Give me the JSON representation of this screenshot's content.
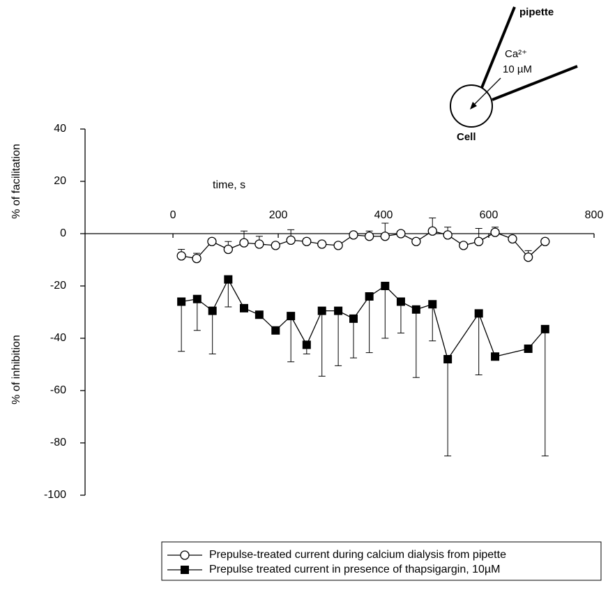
{
  "chart_data": {
    "type": "line",
    "axis_label_upper": "% of facilitation",
    "axis_label_lower": "% of inhibition",
    "xlabel": "time, s",
    "annotations": {
      "pipette": "pipette",
      "ion": "Ca²⁺",
      "concentration": "10 µM",
      "cell": "Cell"
    },
    "xlim": [
      -167,
      800
    ],
    "xticks": [
      0,
      200,
      400,
      600,
      800
    ],
    "ylim": [
      -100,
      40
    ],
    "yticks": [
      -100,
      -80,
      -60,
      -40,
      -20,
      0,
      20,
      40
    ],
    "series": [
      {
        "name": "Prepulse-treated current during calcium dialysis from pipette",
        "color": "#000000",
        "marker": "open-circle",
        "error_direction": "up",
        "x": [
          16,
          45,
          74,
          105,
          135,
          164,
          195,
          224,
          254,
          283,
          314,
          343,
          373,
          403,
          433,
          462,
          493,
          522,
          552,
          581,
          612,
          645,
          675,
          707
        ],
        "values": [
          -8.5,
          -9.5,
          -3,
          -6,
          -3.5,
          -4,
          -4.5,
          -2.5,
          -3,
          -4,
          -4.5,
          -0.5,
          -1,
          -1,
          0,
          -3,
          1,
          -0.5,
          -4.5,
          -3,
          0.5,
          -2,
          -9,
          -3
        ],
        "errors": [
          2.5,
          2,
          0,
          3,
          4.5,
          3,
          0,
          4,
          0,
          0,
          0,
          0,
          2,
          5,
          0,
          0,
          5,
          3,
          0,
          5,
          2,
          0,
          2.5,
          0
        ]
      },
      {
        "name": "Prepulse treated current in presence of thapsigargin, 10µM",
        "color": "#000000",
        "marker": "filled-square",
        "error_direction": "down",
        "x": [
          16,
          46,
          75,
          105,
          135,
          164,
          195,
          224,
          254,
          283,
          314,
          343,
          373,
          403,
          433,
          462,
          493,
          522,
          581,
          612,
          675,
          707
        ],
        "values": [
          -26,
          -25,
          -29.5,
          -17.5,
          -28.5,
          -31,
          -37,
          -31.5,
          -42.5,
          -29.5,
          -29.5,
          -32.5,
          -24,
          -20,
          -26,
          -29,
          -27,
          -48,
          -30.5,
          -47,
          -44,
          -36.5
        ],
        "errors": [
          19,
          12,
          16.5,
          10.5,
          0,
          0,
          0,
          17.5,
          3.5,
          25,
          21,
          15,
          21.5,
          20,
          12,
          26,
          14,
          37,
          23.5,
          0,
          0,
          48.5
        ]
      }
    ]
  }
}
